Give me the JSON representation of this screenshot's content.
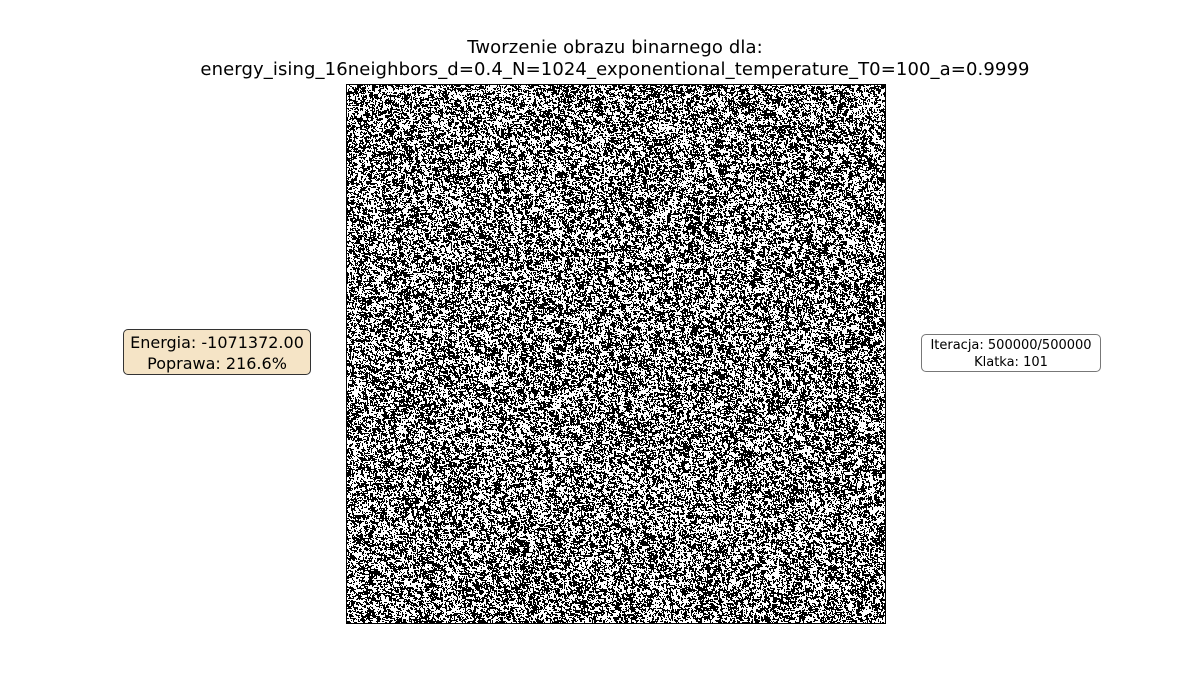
{
  "figure": {
    "title_line1": "Tworzenie obrazu binarnego dla:",
    "title_line2": "energy_ising_16neighbors_d=0.4_N=1024_exponentional_temperature_T0=100_a=0.9999"
  },
  "image": {
    "kind": "binary-noise",
    "colors": {
      "on": "#000000",
      "off": "#ffffff"
    }
  },
  "energy_panel": {
    "energy_text": "Energia: -1071372.00",
    "improvement_text": "Poprawa: 216.6%",
    "background_color": "#f5e4c6"
  },
  "iteration_panel": {
    "iteration_text": "Iteracja: 500000/500000",
    "frame_text": "Klatka: 101"
  }
}
